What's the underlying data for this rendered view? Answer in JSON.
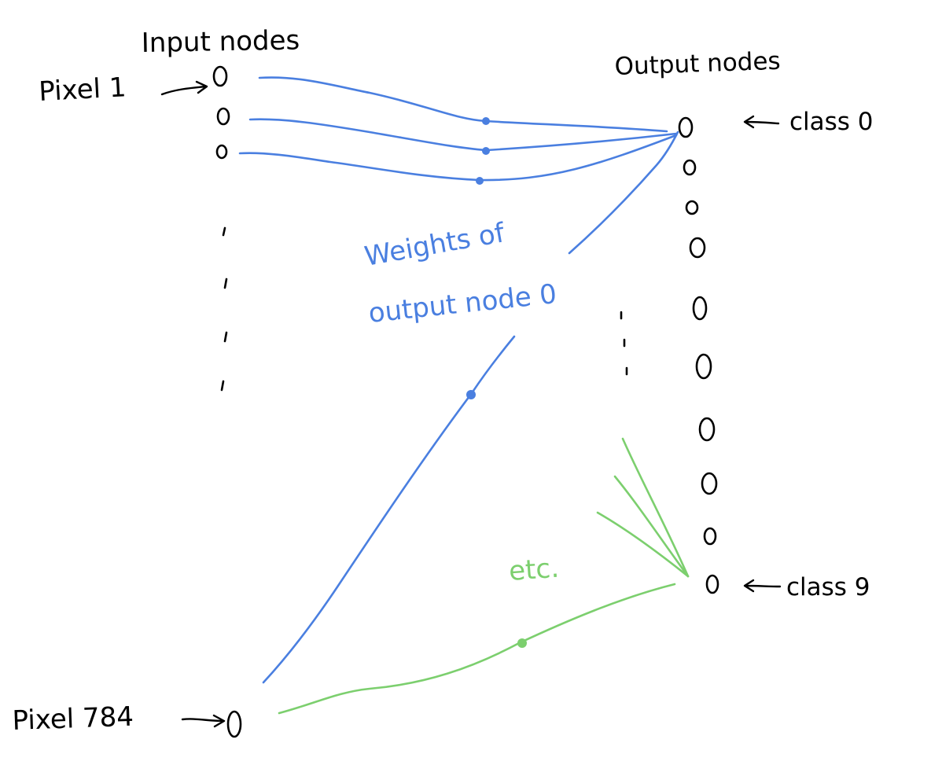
{
  "labels": {
    "input_nodes": "Input nodes",
    "output_nodes": "Output nodes",
    "pixel_first": "Pixel 1",
    "pixel_last": "Pixel 784",
    "class_first": "class 0",
    "class_last": "class 9",
    "weights_line1": "Weights of",
    "weights_line2": "output node 0",
    "etc": "etc."
  },
  "colors": {
    "ink": "#000000",
    "weights_output_0": "#4a7fe0",
    "weights_other": "#7ccf6e"
  },
  "output_node_count": 10,
  "icons": {
    "arrow_into_node": "right-arrow-icon",
    "arrow_from_label": "left-arrow-icon"
  }
}
